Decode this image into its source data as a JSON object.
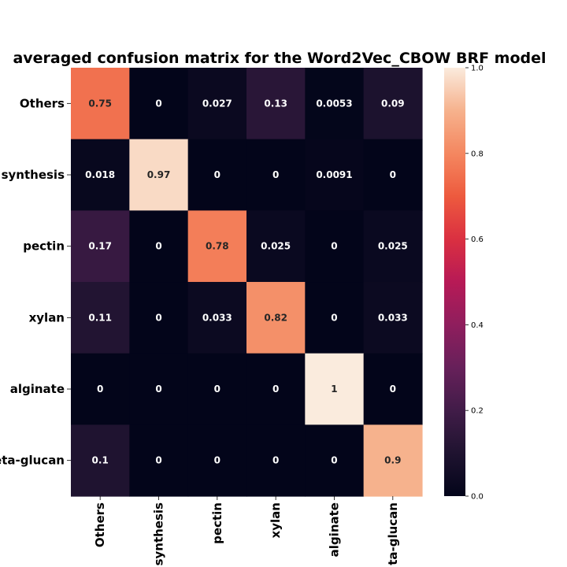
{
  "chart_data": {
    "type": "heatmap",
    "title": "averaged confusion matrix for the Word2Vec_CBOW BRF model",
    "row_labels": [
      "Others",
      "synthesis",
      "pectin",
      "xylan",
      "alginate",
      "eta-glucan"
    ],
    "col_labels": [
      "Others",
      "synthesis",
      "pectin",
      "xylan",
      "alginate",
      "ta-glucan"
    ],
    "values": [
      [
        0.75,
        0,
        0.027,
        0.13,
        0.0053,
        0.09
      ],
      [
        0.018,
        0.97,
        0,
        0,
        0.0091,
        0
      ],
      [
        0.17,
        0,
        0.78,
        0.025,
        0,
        0.025
      ],
      [
        0.11,
        0,
        0.033,
        0.82,
        0,
        0.033
      ],
      [
        0,
        0,
        0,
        0,
        1,
        0
      ],
      [
        0.1,
        0,
        0,
        0,
        0,
        0.9
      ]
    ],
    "value_labels": [
      [
        "0.75",
        "0",
        "0.027",
        "0.13",
        "0.0053",
        "0.09"
      ],
      [
        "0.018",
        "0.97",
        "0",
        "0",
        "0.0091",
        "0"
      ],
      [
        "0.17",
        "0",
        "0.78",
        "0.025",
        "0",
        "0.025"
      ],
      [
        "0.11",
        "0",
        "0.033",
        "0.82",
        "0",
        "0.033"
      ],
      [
        "0",
        "0",
        "0",
        "0",
        "1",
        "0"
      ],
      [
        "0.1",
        "0",
        "0",
        "0",
        "0",
        "0.9"
      ]
    ],
    "colorbar": {
      "range": [
        0,
        1
      ],
      "ticks": [
        "0.0",
        "0.2",
        "0.4",
        "0.6",
        "0.8",
        "1.0"
      ],
      "tick_values": [
        0,
        0.2,
        0.4,
        0.6,
        0.8,
        1.0
      ],
      "colormap": "rocket"
    }
  }
}
